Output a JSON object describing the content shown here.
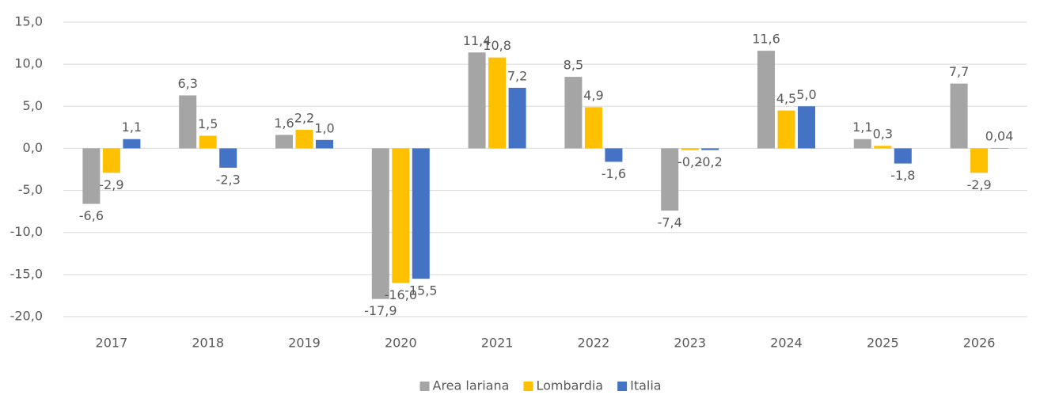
{
  "chart_data": {
    "type": "bar",
    "categories": [
      "2017",
      "2018",
      "2019",
      "2020",
      "2021",
      "2022",
      "2023",
      "2024",
      "2025",
      "2026"
    ],
    "series": [
      {
        "name": "Area lariana",
        "color": "#a5a5a5",
        "values": [
          -6.6,
          6.3,
          1.6,
          -17.9,
          11.4,
          8.5,
          -7.4,
          11.6,
          1.1,
          7.7
        ],
        "value_labels": [
          "-6,6",
          "6,3",
          "1,6",
          "-17,9",
          "11,4",
          "8,5",
          "-7,4",
          "11,6",
          "1,1",
          "7,7"
        ]
      },
      {
        "name": "Lombardia",
        "color": "#ffc000",
        "values": [
          -2.9,
          1.5,
          2.2,
          -16.0,
          10.8,
          4.9,
          -0.2,
          4.5,
          0.3,
          -2.9
        ],
        "value_labels": [
          "-2,9",
          "1,5",
          "2,2",
          "-16,0",
          "10,8",
          "4,9",
          "-0,2",
          "4,5",
          "0,3",
          "-2,9"
        ]
      },
      {
        "name": "Italia",
        "color": "#4472c4",
        "values": [
          1.1,
          -2.3,
          1.0,
          -15.5,
          7.2,
          -1.6,
          -0.2,
          5.0,
          -1.8,
          0.04
        ],
        "value_labels": [
          "1,1",
          "-2,3",
          "1,0",
          "-15,5",
          "7,2",
          "-1,6",
          "-0,2",
          "5,0",
          "-1,8",
          "0,04"
        ]
      }
    ],
    "ylim": [
      -20,
      15
    ],
    "yticks": [
      {
        "value": -20,
        "label": "-20,0"
      },
      {
        "value": -15,
        "label": "-15,0"
      },
      {
        "value": -10,
        "label": "-10,0"
      },
      {
        "value": -5,
        "label": "-5,0"
      },
      {
        "value": 0,
        "label": "0,0"
      },
      {
        "value": 5,
        "label": "5,0"
      },
      {
        "value": 10,
        "label": "10,0"
      },
      {
        "value": 15,
        "label": "15,0"
      }
    ],
    "grid": true,
    "legend": "bottom"
  }
}
